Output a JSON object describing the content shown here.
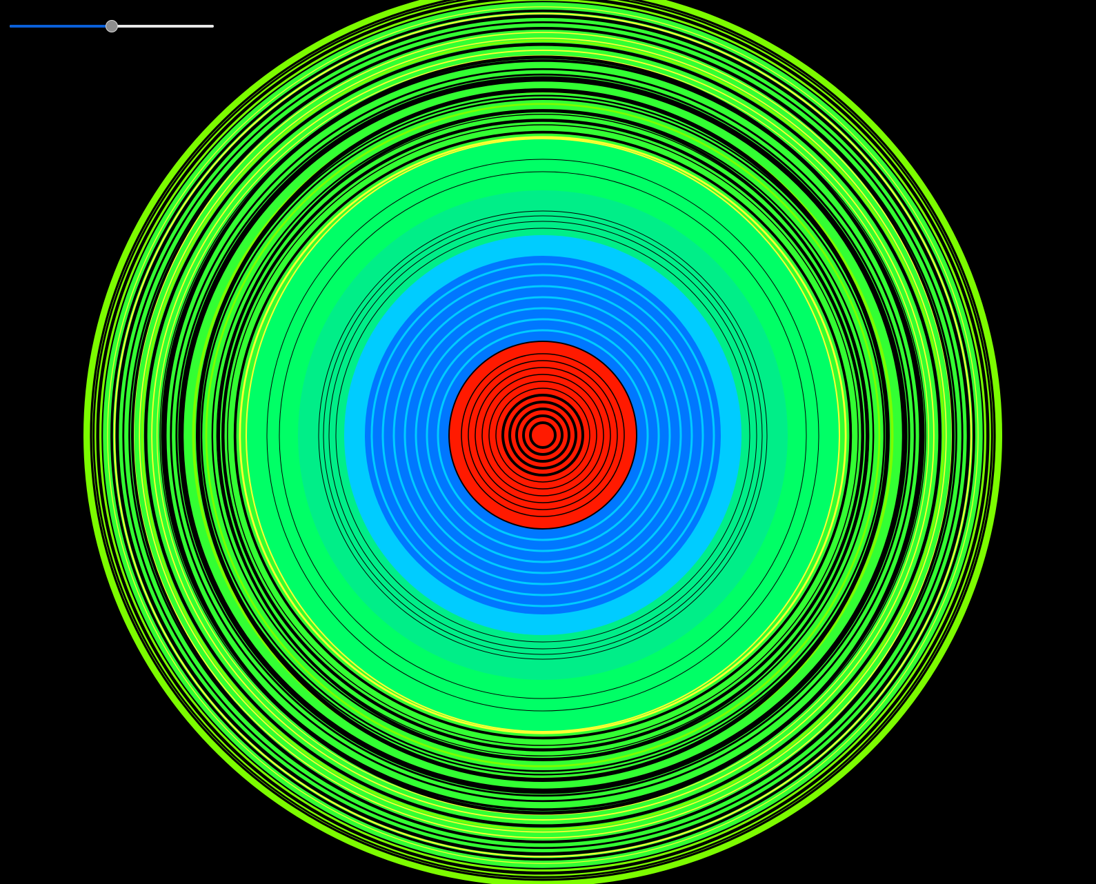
{
  "slider": {
    "value": 0.5
  },
  "rings": {
    "colors": {
      "background": "#000000",
      "outer": "#7cfc00",
      "lime": "#33ff33",
      "yellow": "#ffff33",
      "spring": "#00ff66",
      "mint": "#00ee88",
      "cyan": "#00ccff",
      "blue": "#0077ff",
      "red": "#ff1a00",
      "line": "#000000"
    }
  }
}
